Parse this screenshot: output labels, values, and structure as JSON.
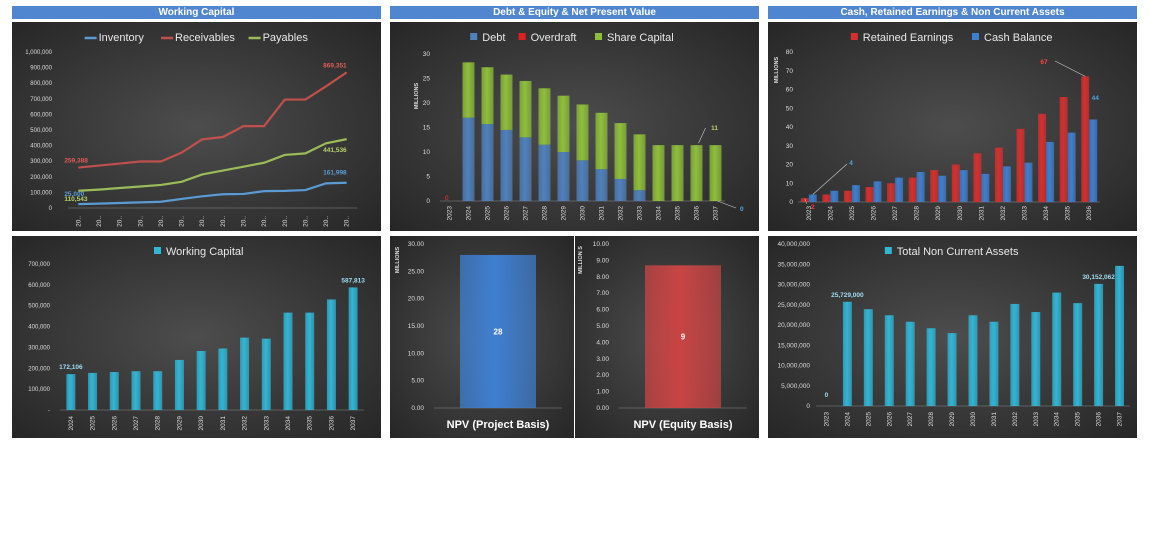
{
  "headers": {
    "working_capital": "Working Capital",
    "debt_equity": "Debt & Equity & Net Present Value",
    "cash_retained": "Cash, Retained Earnings & Non Current Assets"
  },
  "colors": {
    "header_bg": "#4f86cf",
    "inventory": "#5b9bd5",
    "receivables": "#c0504d",
    "payables": "#9bbb59",
    "debt": "#4f81bd",
    "overdraft": "#e02020",
    "share_capital": "#8fbf3a",
    "retained": "#d62f2f",
    "cash": "#3f7fd0",
    "teal": "#31b6d6",
    "npv_project": "#3f7fd0",
    "npv_equity": "#c94444"
  },
  "chart_data": [
    {
      "id": "wc_lines",
      "type": "line",
      "x": [
        "20..",
        "20..",
        "20..",
        "20..",
        "20..",
        "20..",
        "20..",
        "20..",
        "20..",
        "20..",
        "20..",
        "20..",
        "20..",
        "20.."
      ],
      "series": [
        {
          "name": "Inventory",
          "values": [
            25000,
            28000,
            32000,
            36000,
            40000,
            58000,
            75000,
            88000,
            90000,
            108000,
            110000,
            115000,
            158000,
            161998
          ]
        },
        {
          "name": "Receivables",
          "values": [
            259388,
            272000,
            285000,
            298000,
            298000,
            355000,
            440000,
            455000,
            525000,
            525000,
            695000,
            695000,
            780000,
            869351
          ]
        },
        {
          "name": "Payables",
          "values": [
            110543,
            118000,
            128000,
            138000,
            148000,
            168000,
            215000,
            240000,
            265000,
            290000,
            340000,
            350000,
            415000,
            441536
          ]
        }
      ],
      "data_labels": [
        {
          "series": "Receivables",
          "index": 0,
          "text": "259,388"
        },
        {
          "series": "Receivables",
          "index": 13,
          "text": "869,351"
        },
        {
          "series": "Inventory",
          "index": 0,
          "text": "25,000"
        },
        {
          "series": "Inventory",
          "index": 13,
          "text": "161,998"
        },
        {
          "series": "Payables",
          "index": 0,
          "text": "110,543"
        },
        {
          "series": "Payables",
          "index": 13,
          "text": "441,536"
        }
      ],
      "y_ticks": [
        "0",
        "100,000",
        "200,000",
        "300,000",
        "400,000",
        "500,000",
        "600,000",
        "700,000",
        "800,000",
        "900,000",
        "1,000,000"
      ],
      "ylim": [
        0,
        1000000
      ],
      "legend": "top"
    },
    {
      "id": "wc_bars",
      "type": "bar",
      "categories": [
        "2024",
        "2025",
        "2026",
        "2027",
        "2028",
        "2029",
        "2030",
        "2031",
        "2032",
        "2033",
        "2034",
        "2035",
        "2036",
        "2037"
      ],
      "series": [
        {
          "name": "Working Capital",
          "values": [
            172106,
            178000,
            182000,
            186000,
            186000,
            240000,
            283000,
            295000,
            347000,
            342000,
            467000,
            467000,
            530000,
            587813
          ]
        }
      ],
      "data_labels": [
        {
          "index": 0,
          "text": "172,106"
        },
        {
          "index": 13,
          "text": "587,813"
        }
      ],
      "y_ticks": [
        "-",
        "100,000",
        "200,000",
        "300,000",
        "400,000",
        "500,000",
        "600,000",
        "700,000"
      ],
      "ylim": [
        0,
        700000
      ],
      "legend": "top"
    },
    {
      "id": "debt_equity",
      "type": "bar",
      "stacked": true,
      "categories": [
        "2023",
        "2024",
        "2025",
        "2026",
        "2027",
        "2028",
        "2029",
        "2030",
        "2031",
        "2032",
        "2033",
        "2034",
        "2035",
        "2036",
        "2037"
      ],
      "series": [
        {
          "name": "Debt",
          "values": [
            0,
            17,
            15.7,
            14.5,
            13,
            11.5,
            10,
            8.3,
            6.5,
            4.5,
            2.2,
            0,
            0,
            0,
            0
          ]
        },
        {
          "name": "Overdraft",
          "values": [
            0,
            0,
            0,
            0,
            0,
            0,
            0,
            0,
            0,
            0,
            0,
            0,
            0,
            0,
            0
          ]
        },
        {
          "name": "Share Capital",
          "values": [
            0,
            11.3,
            11.6,
            11.3,
            11.5,
            11.5,
            11.5,
            11.4,
            11.5,
            11.4,
            11.4,
            11.4,
            11.4,
            11.4,
            11.4
          ]
        }
      ],
      "data_labels": [
        {
          "text": "0",
          "index": 0,
          "series": "Overdraft"
        },
        {
          "text": "11",
          "index": 13,
          "series": "Share Capital"
        },
        {
          "text": "0",
          "index": 14,
          "series": "Debt"
        }
      ],
      "y_ticks": [
        "0",
        "5",
        "10",
        "15",
        "20",
        "25",
        "30"
      ],
      "ylim": [
        0,
        30
      ],
      "ylabel": "MILLIONS",
      "legend": "top"
    },
    {
      "id": "npv_project",
      "type": "bar",
      "categories": [
        "NPV (Project Basis)"
      ],
      "values": [
        28
      ],
      "data_labels": [
        "28"
      ],
      "y_ticks": [
        "0.00",
        "5.00",
        "10.00",
        "15.00",
        "20.00",
        "25.00",
        "30.00"
      ],
      "ylim": [
        0,
        30
      ],
      "ylabel": "MILLIONS"
    },
    {
      "id": "npv_equity",
      "type": "bar",
      "categories": [
        "NPV (Equity Basis)"
      ],
      "values": [
        8.7
      ],
      "data_labels": [
        "9"
      ],
      "y_ticks": [
        "0.00",
        "1.00",
        "2.00",
        "3.00",
        "4.00",
        "5.00",
        "6.00",
        "7.00",
        "8.00",
        "9.00",
        "10.00"
      ],
      "ylim": [
        0,
        10
      ],
      "ylabel": "MILLION S"
    },
    {
      "id": "cash_retained",
      "type": "bar",
      "categories": [
        "2023",
        "2024",
        "2025",
        "2026",
        "2027",
        "2028",
        "2029",
        "2030",
        "2031",
        "2032",
        "2033",
        "2034",
        "2035",
        "2036"
      ],
      "series": [
        {
          "name": "Retained Earnings",
          "values": [
            2,
            4,
            6,
            8,
            10,
            13,
            17,
            20,
            26,
            29,
            39,
            47,
            56,
            67
          ]
        },
        {
          "name": "Cash Balance",
          "values": [
            4,
            6,
            9,
            11,
            13,
            16,
            14,
            17,
            15,
            19,
            21,
            32,
            37,
            44
          ]
        }
      ],
      "data_labels": [
        {
          "series": "Retained Earnings",
          "index": 0,
          "text": "2"
        },
        {
          "series": "Retained Earnings",
          "index": 13,
          "text": "67"
        },
        {
          "series": "Cash Balance",
          "index": 0,
          "text": "4"
        },
        {
          "series": "Cash Balance",
          "index": 13,
          "text": "44"
        }
      ],
      "y_ticks": [
        "0",
        "10",
        "20",
        "30",
        "40",
        "50",
        "60",
        "70",
        "80"
      ],
      "ylim": [
        0,
        80
      ],
      "ylabel": "MILLIONS",
      "legend": "top"
    },
    {
      "id": "nca",
      "type": "bar",
      "categories": [
        "2023",
        "2024",
        "2025",
        "2026",
        "2027",
        "2028",
        "2029",
        "2030",
        "2031",
        "2032",
        "2033",
        "2034",
        "2035",
        "2036",
        "2037"
      ],
      "series": [
        {
          "name": "Total Non Current Assets",
          "values": [
            0,
            25729000,
            23900000,
            22400000,
            20800000,
            19200000,
            18000000,
            22400000,
            20800000,
            25200000,
            23200000,
            28000000,
            25400000,
            30152062,
            34600000
          ]
        }
      ],
      "data_labels": [
        {
          "index": 0,
          "text": "0"
        },
        {
          "index": 1,
          "text": "25,729,000"
        },
        {
          "index": 13,
          "text": "30,152,062"
        }
      ],
      "y_ticks": [
        "0",
        "5,000,000",
        "10,000,000",
        "15,000,000",
        "20,000,000",
        "25,000,000",
        "30,000,000",
        "35,000,000",
        "40,000,000"
      ],
      "ylim": [
        0,
        40000000
      ],
      "legend": "top"
    }
  ]
}
